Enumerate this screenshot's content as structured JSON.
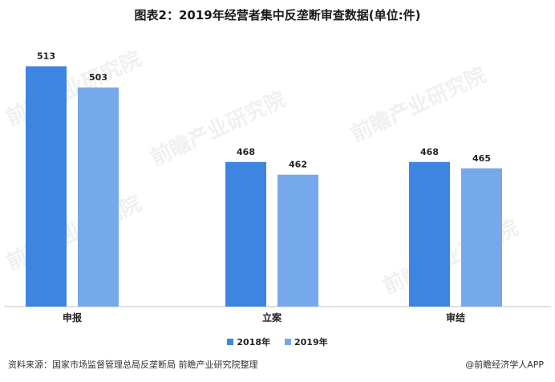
{
  "title": "图表2：2019年经营者集中反垄断审查数据(单位:件)",
  "source": "资料来源：国家市场监督管理总局反垄断局 前瞻产业研究院整理",
  "credit": "@前瞻经济学人APP",
  "watermark": "前瞻产业研究院",
  "colors": {
    "series_2018": "#3d85e0",
    "series_2019": "#75a9ec",
    "axis": "#bfbfbf"
  },
  "chart_data": {
    "type": "bar",
    "categories": [
      "申报",
      "立案",
      "审结"
    ],
    "series": [
      {
        "name": "2018年",
        "values": [
          513,
          468,
          468
        ]
      },
      {
        "name": "2019年",
        "values": [
          503,
          462,
          465
        ]
      }
    ],
    "ylim": [
      400,
      520
    ],
    "legend": "bottom",
    "grid": false
  }
}
